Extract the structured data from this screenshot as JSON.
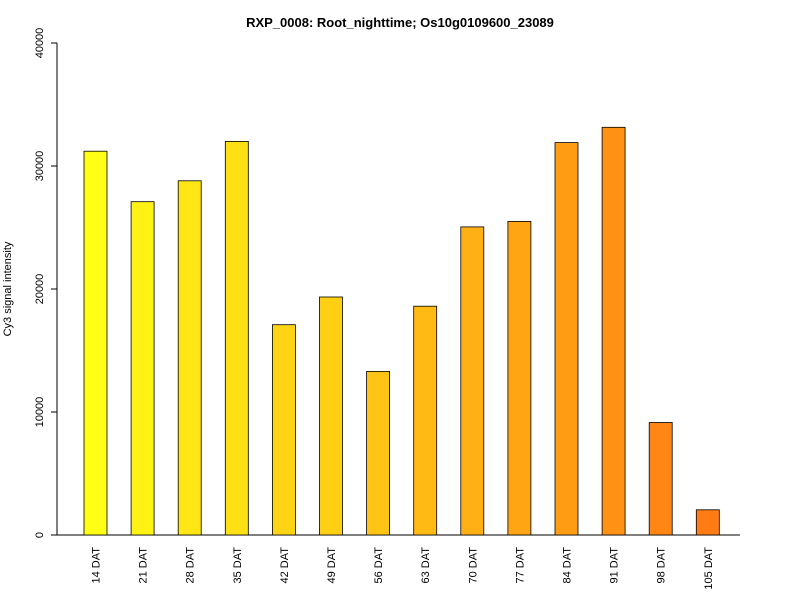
{
  "chart_data": {
    "type": "bar",
    "title": "RXP_0008: Root_nighttime; Os10g0109600_23089",
    "xlabel": "",
    "ylabel": "Cy3 signal intensity",
    "ylim": [
      0,
      40000
    ],
    "yticks": [
      0,
      10000,
      20000,
      30000,
      40000
    ],
    "grid": false,
    "categories": [
      "14 DAT",
      "21 DAT",
      "28 DAT",
      "35 DAT",
      "42 DAT",
      "49 DAT",
      "56 DAT",
      "63 DAT",
      "70 DAT",
      "77 DAT",
      "84 DAT",
      "91 DAT",
      "98 DAT",
      "105 DAT"
    ],
    "values": [
      31200,
      27100,
      28800,
      32000,
      17100,
      19350,
      13300,
      18600,
      25050,
      25500,
      31900,
      33150,
      9150,
      2050
    ],
    "colors": [
      "#FFFF14",
      "#FFF214",
      "#FFE614",
      "#FFE014",
      "#FFD414",
      "#FFCF14",
      "#FFC414",
      "#FFBA14",
      "#FFB014",
      "#FFA514",
      "#FF9C14",
      "#FF9114",
      "#FF8614",
      "#FF7C14"
    ]
  }
}
